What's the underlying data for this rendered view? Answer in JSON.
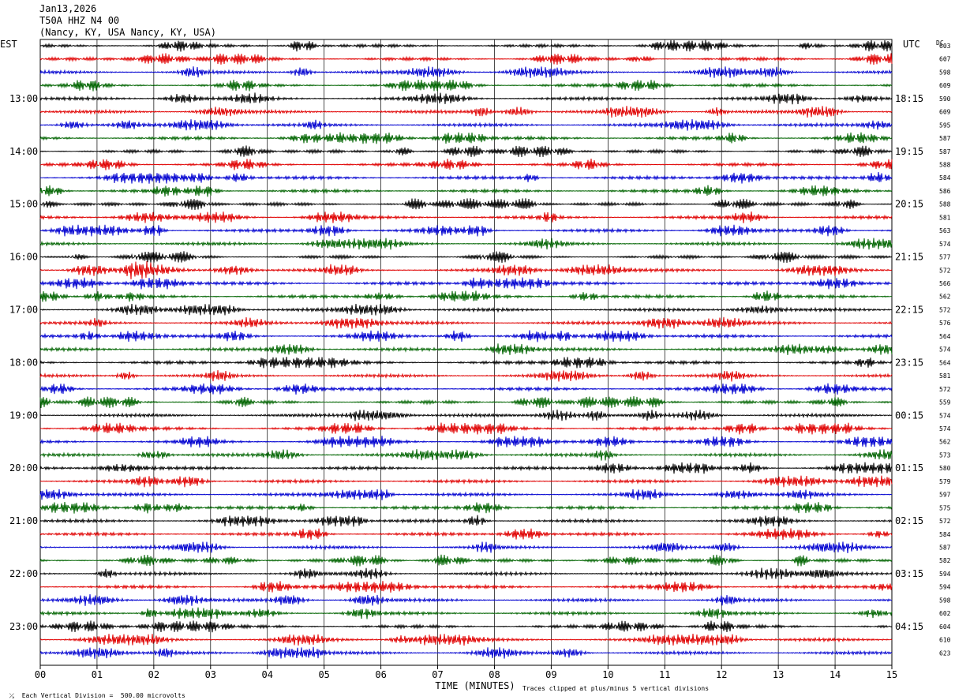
{
  "header": {
    "date": "Jan13,2026",
    "station": "T50A HHZ N4 00",
    "location": "(Nancy, KY, USA Nancy, KY, USA)"
  },
  "axes": {
    "left_title": "EST",
    "right_title": "UTC",
    "dc_title": "DC",
    "xlabel": "TIME (MINUTES)"
  },
  "footer": {
    "scale_text": "Each Vertical Division =  500.00 microvolts",
    "clip_text": "Traces clipped at plus/minus 5 vertical divisions"
  },
  "colors": {
    "trace_cycle": [
      "#000000",
      "#e00000",
      "#0000d0",
      "#006400"
    ],
    "grid": "#000000"
  },
  "chart_data": {
    "type": "line",
    "title": "T50A HHZ N4 00",
    "x_ticks": [
      "00",
      "01",
      "02",
      "03",
      "04",
      "05",
      "06",
      "07",
      "08",
      "09",
      "10",
      "11",
      "12",
      "13",
      "14",
      "15"
    ],
    "xlim": [
      0,
      15
    ],
    "est_hours": [
      "13:00",
      "14:00",
      "15:00",
      "16:00",
      "17:00",
      "18:00",
      "19:00",
      "20:00",
      "21:00",
      "22:00",
      "23:00"
    ],
    "utc_hours": [
      "18:15",
      "19:15",
      "20:15",
      "21:15",
      "22:15",
      "23:15",
      "00:15",
      "01:15",
      "02:15",
      "03:15",
      "04:15"
    ],
    "first_hour_row": 4,
    "rows_per_hour": 4,
    "dc_offsets": [
      603,
      607,
      598,
      609,
      590,
      609,
      595,
      587,
      587,
      588,
      584,
      586,
      588,
      581,
      563,
      574,
      577,
      572,
      566,
      562,
      572,
      576,
      564,
      574,
      564,
      581,
      572,
      559,
      574,
      574,
      562,
      573,
      580,
      579,
      597,
      575,
      572,
      584,
      587,
      582,
      594,
      594,
      598,
      602,
      604,
      610,
      623
    ],
    "grid": true
  }
}
